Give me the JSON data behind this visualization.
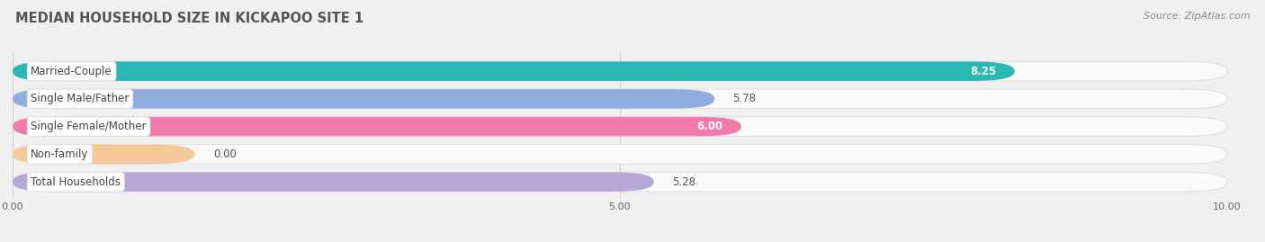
{
  "title": "MEDIAN HOUSEHOLD SIZE IN KICKAPOO SITE 1",
  "source": "Source: ZipAtlas.com",
  "categories": [
    "Married-Couple",
    "Single Male/Father",
    "Single Female/Mother",
    "Non-family",
    "Total Households"
  ],
  "values": [
    8.25,
    5.78,
    6.0,
    0.0,
    5.28
  ],
  "display_values": [
    "8.25",
    "5.78",
    "6.00",
    "0.00",
    "5.28"
  ],
  "value_inside": [
    true,
    false,
    true,
    false,
    false
  ],
  "bar_colors": [
    "#2ab8b5",
    "#8faedd",
    "#f07baa",
    "#f5c99a",
    "#b8a8d8"
  ],
  "background_color": "#f0f0f0",
  "bar_bg_color": "#fafafa",
  "bar_bg_edge_color": "#e0e0e0",
  "xlim": [
    0,
    10
  ],
  "xtick_positions": [
    0.0,
    5.0,
    10.0
  ],
  "xtick_labels": [
    "0.00",
    "5.00",
    "10.00"
  ],
  "title_fontsize": 10.5,
  "label_fontsize": 8.5,
  "value_fontsize": 8.5,
  "source_fontsize": 8,
  "non_family_bar_extent": 1.5
}
